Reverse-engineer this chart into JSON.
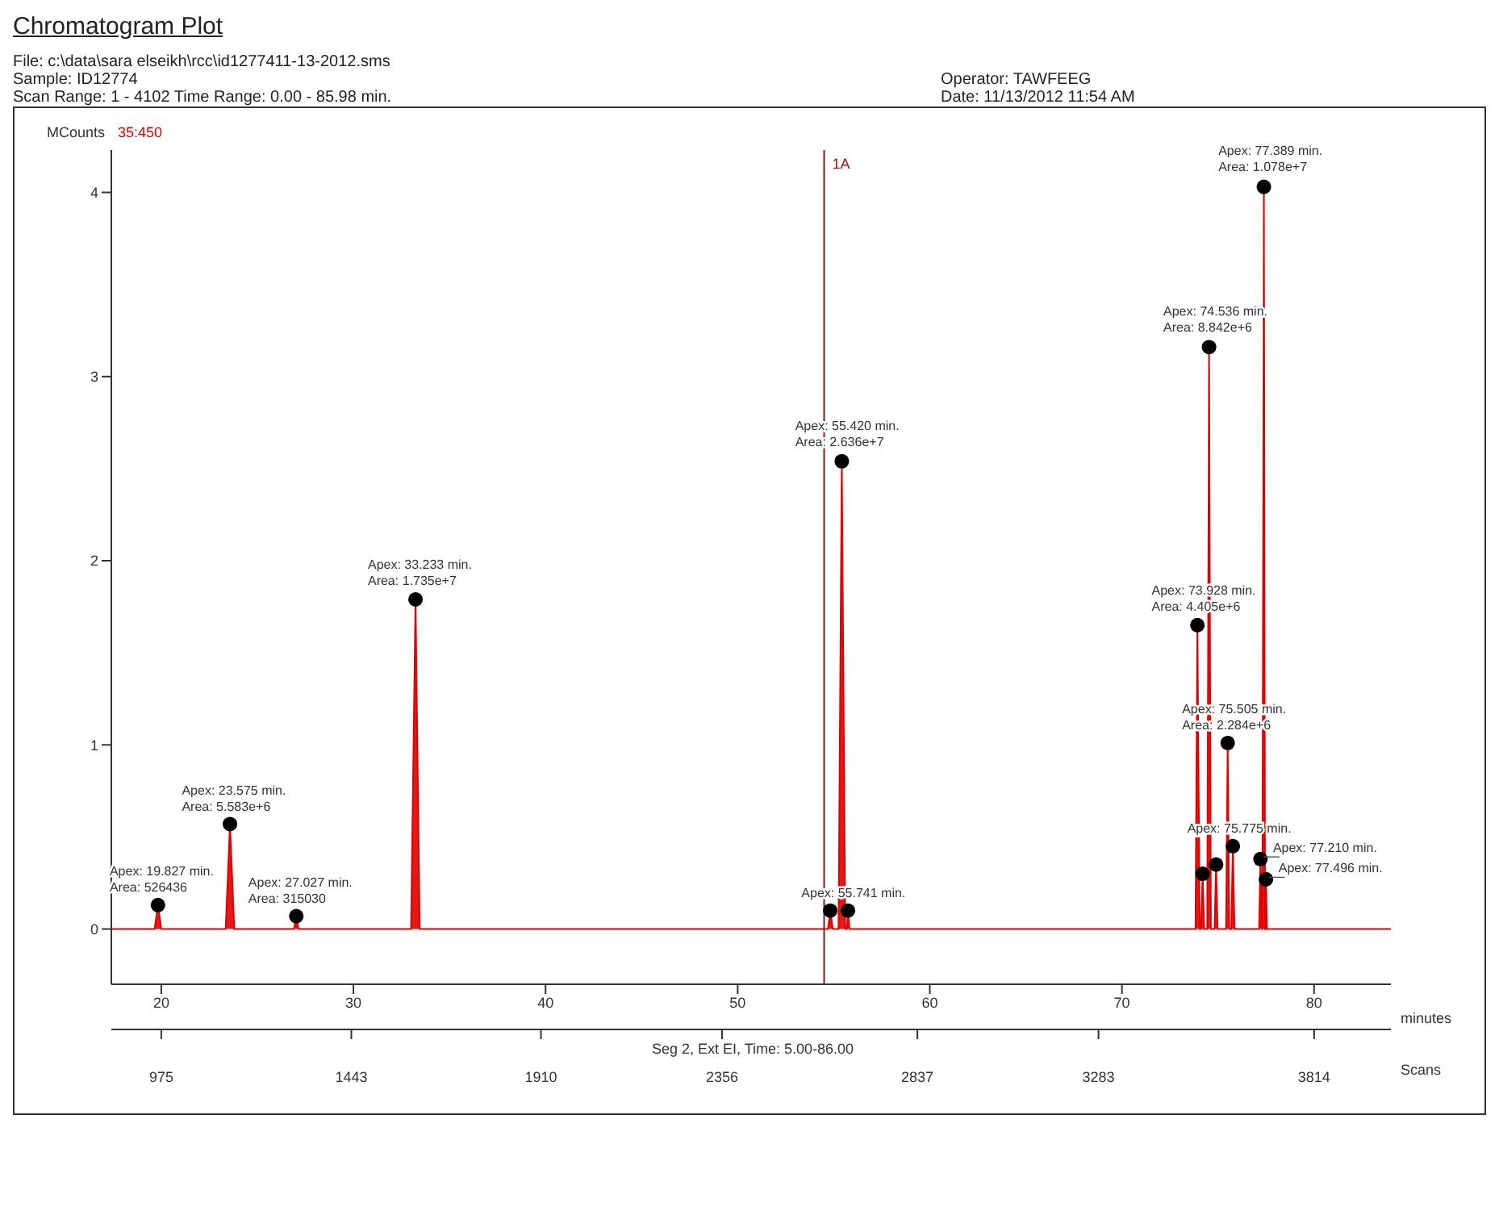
{
  "chart_data": {
    "type": "area",
    "title": "Chromatogram Plot",
    "subtitle": "File: c:\\data\\sara elseikh\\rcc\\id1277411-13-2012.sms",
    "ylabel": "MCounts",
    "xlabel": "minutes",
    "x2label": "Scans",
    "xlim": [
      17.4,
      84
    ],
    "xticks": [
      20,
      30,
      40,
      50,
      60,
      70,
      80
    ],
    "ylim": [
      -0.3,
      4.23
    ],
    "yticks": [
      0,
      1,
      2,
      3,
      4
    ],
    "x2lim": [
      852,
      4003
    ],
    "x2ticks": [
      975,
      1443,
      1910,
      2356,
      2837,
      3283,
      3814
    ],
    "ref_lines": [
      {
        "axis": "x",
        "value": 54.5,
        "label": "1A",
        "color": "#8b1a1a"
      }
    ],
    "series": [
      {
        "color": "#e00000",
        "x": [
          17.4,
          19.65,
          19.827,
          20.0,
          23.35,
          23.575,
          23.8,
          26.9,
          27.027,
          27.15,
          33.0,
          33.233,
          33.45,
          54.7,
          54.82,
          54.95,
          55.25,
          55.42,
          55.6,
          55.68,
          55.741,
          55.82,
          73.83,
          73.928,
          74.05,
          74.12,
          74.2,
          74.28,
          74.44,
          74.536,
          74.63,
          74.82,
          74.9,
          74.98,
          75.42,
          75.505,
          75.59,
          75.69,
          75.775,
          75.86,
          77.14,
          77.21,
          77.28,
          77.31,
          77.389,
          77.45,
          77.47,
          77.496,
          77.55,
          84
        ],
        "values": [
          0,
          0,
          0.13,
          0,
          0,
          0.57,
          0,
          0,
          0.07,
          0,
          0,
          1.79,
          0,
          0,
          0.1,
          0,
          0,
          2.54,
          0,
          0,
          0.1,
          0,
          0,
          1.65,
          0,
          0,
          0.3,
          0,
          0,
          3.16,
          0,
          0,
          0.35,
          0,
          0,
          1.01,
          0,
          0,
          0.45,
          0,
          0,
          0.38,
          0,
          0,
          4.03,
          0,
          0,
          0.27,
          0,
          0
        ]
      },
      {
        "type": "scatter",
        "marker": "circle",
        "color": "#000000",
        "x": [
          19.827,
          23.575,
          27.027,
          33.233,
          54.82,
          55.42,
          55.741,
          73.928,
          74.2,
          74.536,
          74.9,
          75.505,
          75.775,
          77.21,
          77.389,
          77.496
        ],
        "values": [
          0.13,
          0.57,
          0.07,
          1.79,
          0.1,
          2.54,
          0.1,
          1.65,
          0.3,
          3.16,
          0.35,
          1.01,
          0.45,
          0.38,
          4.03,
          0.27
        ]
      }
    ],
    "annotations": [
      "Sample: ID12774",
      "Scan Range: 1 - 4102 Time Range: 0.00 - 85.98 min.",
      "Operator: TAWFEEG",
      "Date: 11/13/2012 11:54 AM",
      "35:450",
      "Seg 2, Ext EI, Time:  5.00-86.00",
      {
        "text": "Apex: 77.389 min.\nArea: 1.078e+7",
        "x": 77.389,
        "y": 4.03
      },
      {
        "text": "Apex: 74.536 min.\nArea: 8.842e+6",
        "x": 74.536,
        "y": 3.16
      },
      {
        "text": "Apex: 55.420 min.\nArea: 2.636e+7",
        "x": 55.42,
        "y": 2.54
      },
      {
        "text": "Apex: 33.233 min.\nArea: 1.735e+7",
        "x": 33.233,
        "y": 1.79
      },
      {
        "text": "Apex: 73.928 min.\nArea: 4.405e+6",
        "x": 73.928,
        "y": 1.65
      },
      {
        "text": "Apex: 75.505 min.\nArea: 2.284e+6",
        "x": 75.505,
        "y": 1.01
      },
      {
        "text": "Apex: 23.575 min.\nArea: 5.583e+6",
        "x": 23.575,
        "y": 0.57
      },
      {
        "text": "Apex: 19.827 min.\nArea: 526436",
        "x": 19.827,
        "y": 0.13
      },
      {
        "text": "Apex: 27.027 min.\nArea: 315030",
        "x": 27.027,
        "y": 0.07
      },
      {
        "text": "Apex: 55.741 min.",
        "x": 55.741,
        "y": 0.1
      },
      {
        "text": "Apex: 75.775 min.",
        "x": 75.775,
        "y": 0.45
      },
      {
        "text": "Apex: 77.210 min.",
        "x": 77.21,
        "y": 0.38
      },
      {
        "text": "Apex: 77.496 min.",
        "x": 77.496,
        "y": 0.27
      }
    ]
  }
}
